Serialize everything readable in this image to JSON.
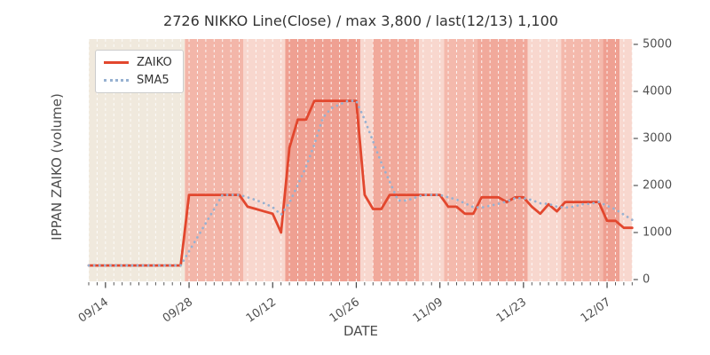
{
  "title": "2726 NIKKO Line(Close) / max 3,800 / last(12/13) 1,100",
  "axes": {
    "x_label": "DATE",
    "y_label": "IPPAN ZAIKO (volume)",
    "y_ticks": [
      "0",
      "1000",
      "2000",
      "3000",
      "4000",
      "5000"
    ],
    "x_tick_labels": [
      "09/14",
      "09/28",
      "10/12",
      "10/26",
      "11/09",
      "11/23",
      "12/07"
    ]
  },
  "legend": [
    {
      "label": "ZAIKO",
      "style": "solid",
      "color": "#e2472e"
    },
    {
      "label": "SMA5",
      "style": "dotted",
      "color": "#97b1d1"
    }
  ],
  "chart_data": {
    "type": "line",
    "title": "2726 NIKKO Line(Close) / max 3,800 / last(12/13) 1,100",
    "xlabel": "DATE",
    "ylabel": "IPPAN ZAIKO (volume)",
    "ylim": [
      0,
      5000
    ],
    "grid": "vertical-white-dashed-daily",
    "legend_position": "upper left",
    "n_points": 66,
    "x_tick_indices": [
      2,
      12,
      22,
      32,
      42,
      52,
      62
    ],
    "max_value": 3800,
    "last_value": 1100,
    "series": [
      {
        "name": "ZAIKO",
        "style": "solid",
        "color": "#e2472e",
        "values": [
          300,
          300,
          300,
          300,
          300,
          300,
          300,
          300,
          300,
          300,
          300,
          300,
          1800,
          1800,
          1800,
          1800,
          1800,
          1800,
          1800,
          1550,
          1500,
          1450,
          1400,
          1000,
          2800,
          3400,
          3400,
          3800,
          3800,
          3800,
          3800,
          3800,
          3800,
          1800,
          1500,
          1500,
          1800,
          1800,
          1800,
          1800,
          1800,
          1800,
          1800,
          1550,
          1550,
          1400,
          1400,
          1750,
          1750,
          1750,
          1650,
          1750,
          1750,
          1550,
          1400,
          1600,
          1450,
          1650,
          1650,
          1650,
          1650,
          1650,
          1250,
          1250,
          1100,
          1100
        ]
      },
      {
        "name": "SMA5",
        "style": "dotted",
        "color": "#97b1d1",
        "derived": "5-point rolling mean of ZAIKO (min periods 1)"
      }
    ],
    "background_bands": [
      {
        "from": 0,
        "to": 11.5,
        "color": "#f0e9dd"
      },
      {
        "from": 11.5,
        "to": 18.5,
        "color": "#f3b6a9"
      },
      {
        "from": 18.5,
        "to": 23.5,
        "color": "#f8d7ce"
      },
      {
        "from": 23.5,
        "to": 32.5,
        "color": "#efa092"
      },
      {
        "from": 32.5,
        "to": 34.0,
        "color": "#f8d7ce"
      },
      {
        "from": 34.0,
        "to": 39.5,
        "color": "#f1a99b"
      },
      {
        "from": 39.5,
        "to": 42.5,
        "color": "#f8d7ce"
      },
      {
        "from": 42.5,
        "to": 46.5,
        "color": "#f4b9ac"
      },
      {
        "from": 46.5,
        "to": 52.5,
        "color": "#f1a99b"
      },
      {
        "from": 52.5,
        "to": 56.5,
        "color": "#f8d7ce"
      },
      {
        "from": 56.5,
        "to": 61.5,
        "color": "#f4b9ac"
      },
      {
        "from": 61.5,
        "to": 63.5,
        "color": "#efa092"
      },
      {
        "from": 63.5,
        "to": 65.0,
        "color": "#f8d7ce"
      }
    ]
  }
}
